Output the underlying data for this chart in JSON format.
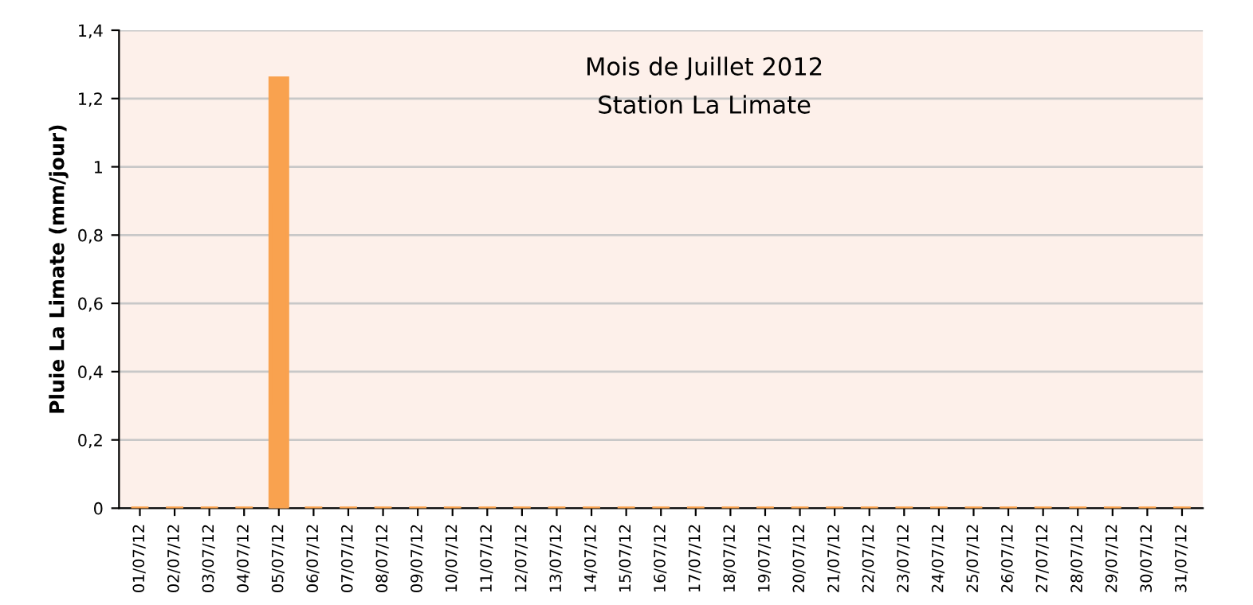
{
  "chart_data": {
    "type": "bar",
    "title": "Mois de Juillet 2012",
    "subtitle": "Station La Limate",
    "ylabel": "Pluie La Limate (mm/jour)",
    "categories": [
      "01/07/12",
      "02/07/12",
      "03/07/12",
      "04/07/12",
      "05/07/12",
      "06/07/12",
      "07/07/12",
      "08/07/12",
      "09/07/12",
      "10/07/12",
      "11/07/12",
      "12/07/12",
      "13/07/12",
      "14/07/12",
      "15/07/12",
      "16/07/12",
      "17/07/12",
      "18/07/12",
      "19/07/12",
      "20/07/12",
      "21/07/12",
      "22/07/12",
      "23/07/12",
      "24/07/12",
      "25/07/12",
      "26/07/12",
      "27/07/12",
      "28/07/12",
      "29/07/12",
      "30/07/12",
      "31/07/12"
    ],
    "values": [
      0,
      0,
      0,
      0,
      1.26,
      0,
      0,
      0,
      0,
      0,
      0,
      0,
      0,
      0,
      0,
      0,
      0,
      0,
      0,
      0,
      0,
      0,
      0,
      0,
      0,
      0,
      0,
      0,
      0,
      0,
      0
    ],
    "color": "#f9a24f",
    "ylim": [
      0,
      1.4
    ],
    "yticks": [
      0,
      {
        "value": 0.2,
        "label": "0,2"
      },
      {
        "value": 0.4,
        "label": "0,4"
      },
      {
        "value": 0.6,
        "label": "0,6"
      },
      {
        "value": 0.8,
        "label": "0,8"
      },
      1,
      {
        "value": 1.2,
        "label": "1,2"
      },
      {
        "value": 1.4,
        "label": "1,4"
      }
    ],
    "grid": "y",
    "legend": false
  }
}
